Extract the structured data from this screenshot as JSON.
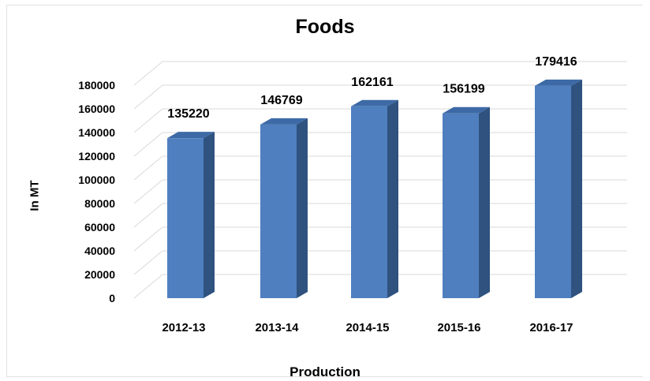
{
  "chart_data": {
    "type": "bar",
    "title": "Foods",
    "xlabel": "Production",
    "ylabel": "In MT",
    "categories": [
      "2012-13",
      "2013-14",
      "2014-15",
      "2015-16",
      "2016-17"
    ],
    "values": [
      135220,
      146769,
      162161,
      156199,
      179416
    ],
    "ylim": [
      0,
      180000
    ],
    "yticks": [
      "0",
      "20000",
      "40000",
      "60000",
      "80000",
      "100000",
      "120000",
      "140000",
      "160000",
      "180000"
    ],
    "grid": true,
    "legend": "none",
    "colors": {
      "bar_front": "#4f7fbf",
      "bar_side": "#2f527f",
      "bar_top": "#3d6aa6",
      "grid": "#d9d9d9"
    }
  }
}
